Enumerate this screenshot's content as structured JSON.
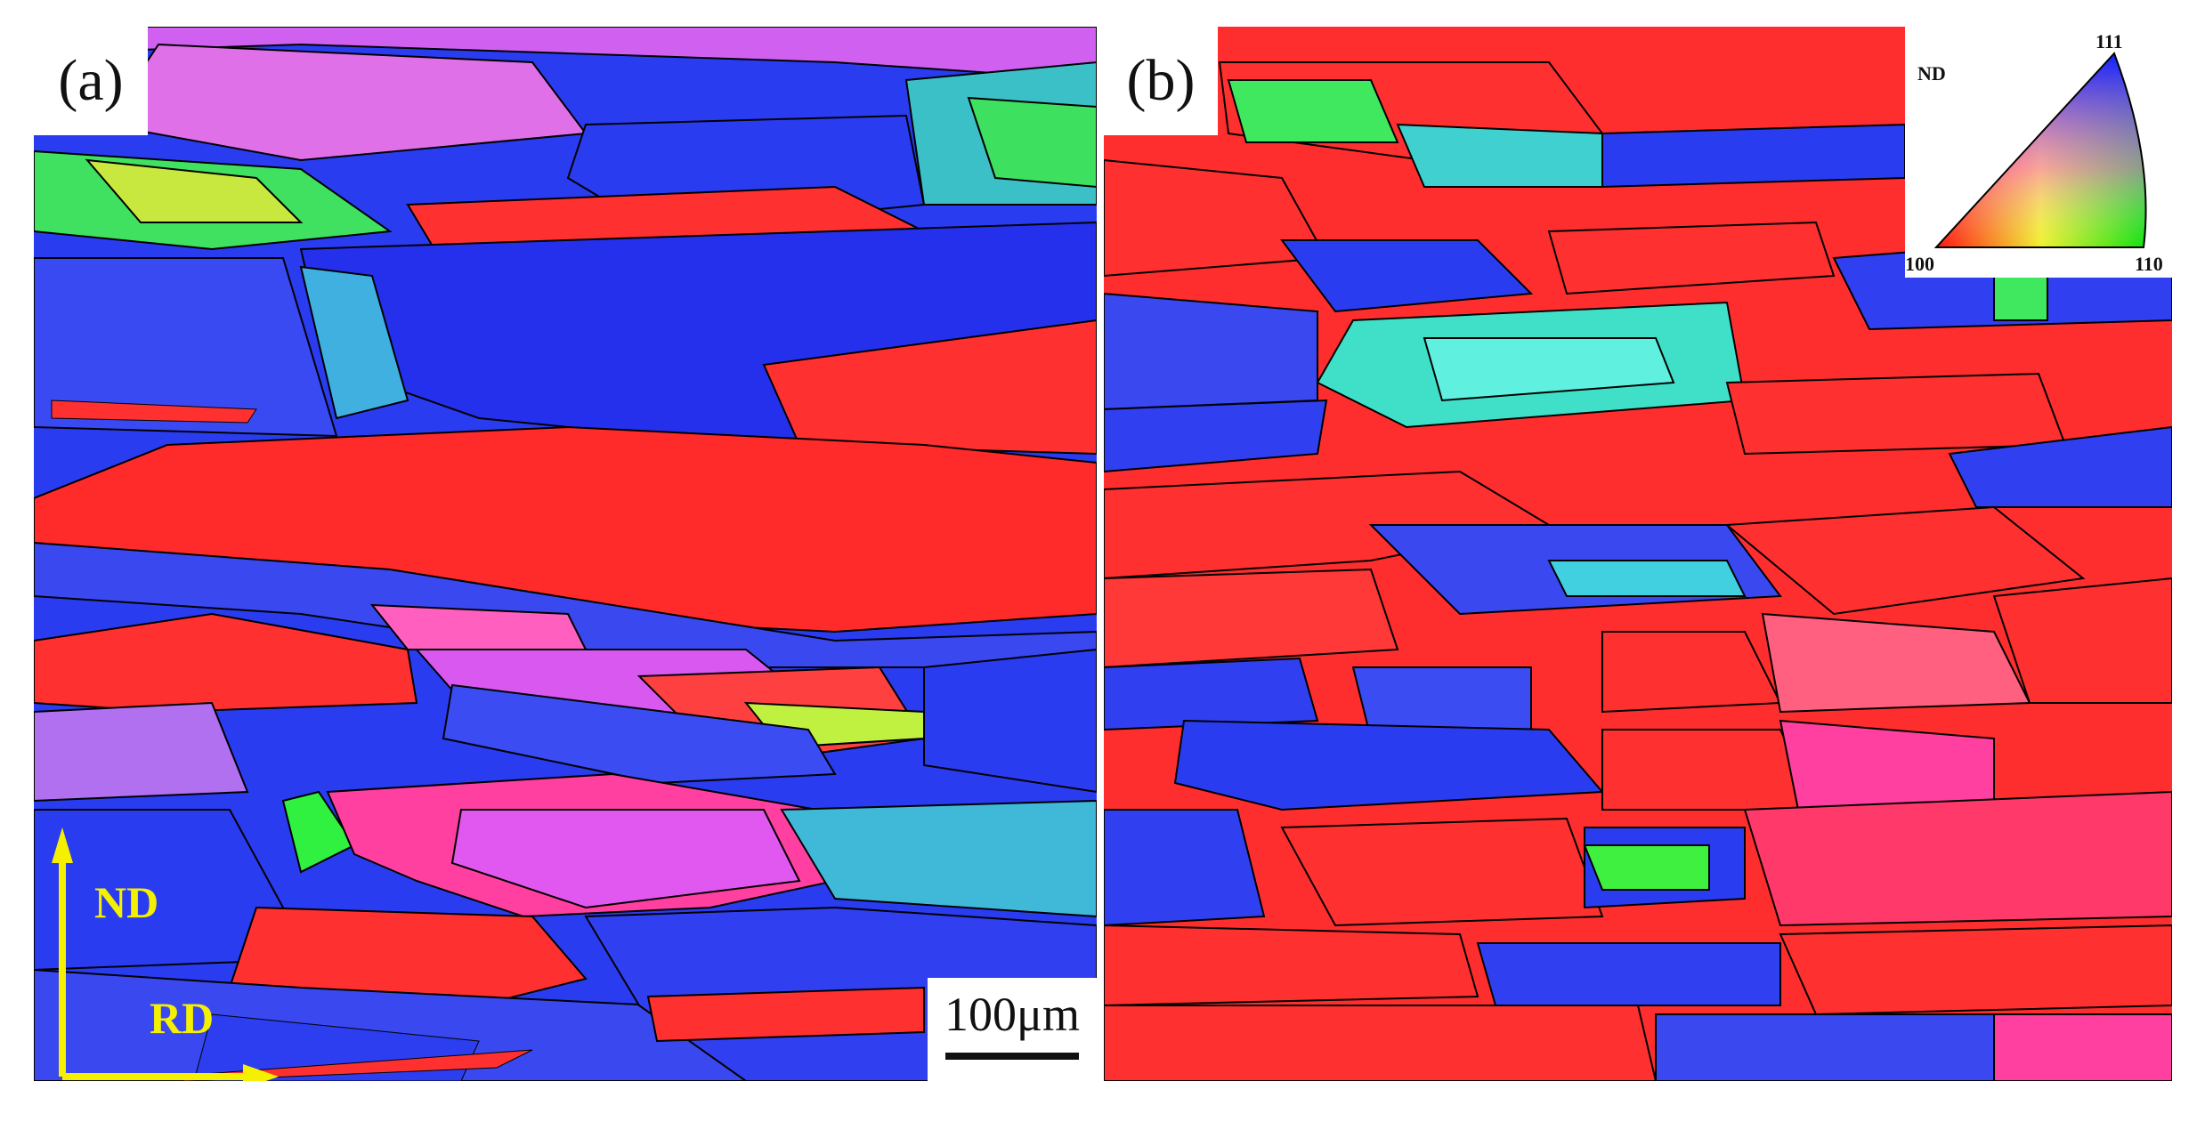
{
  "figure": {
    "panel_a": {
      "label": "(a)"
    },
    "panel_b": {
      "label": "(b)"
    },
    "scale_bar": {
      "text": "100μm"
    },
    "axes": {
      "vertical": "ND",
      "horizontal": "RD",
      "color": "#f5f000"
    },
    "ipf_key": {
      "direction": "ND",
      "corners": {
        "top": "111",
        "left": "100",
        "right": "110"
      },
      "colors": {
        "100": "#ff1010",
        "110": "#10e010",
        "111": "#1020ff"
      }
    },
    "map_colors": {
      "red": "#ff2d2d",
      "blue": "#2436f0",
      "magenta": "#d84df0",
      "green": "#2fe82f",
      "cyan": "#30e0d8",
      "boundary": "#000000"
    }
  }
}
